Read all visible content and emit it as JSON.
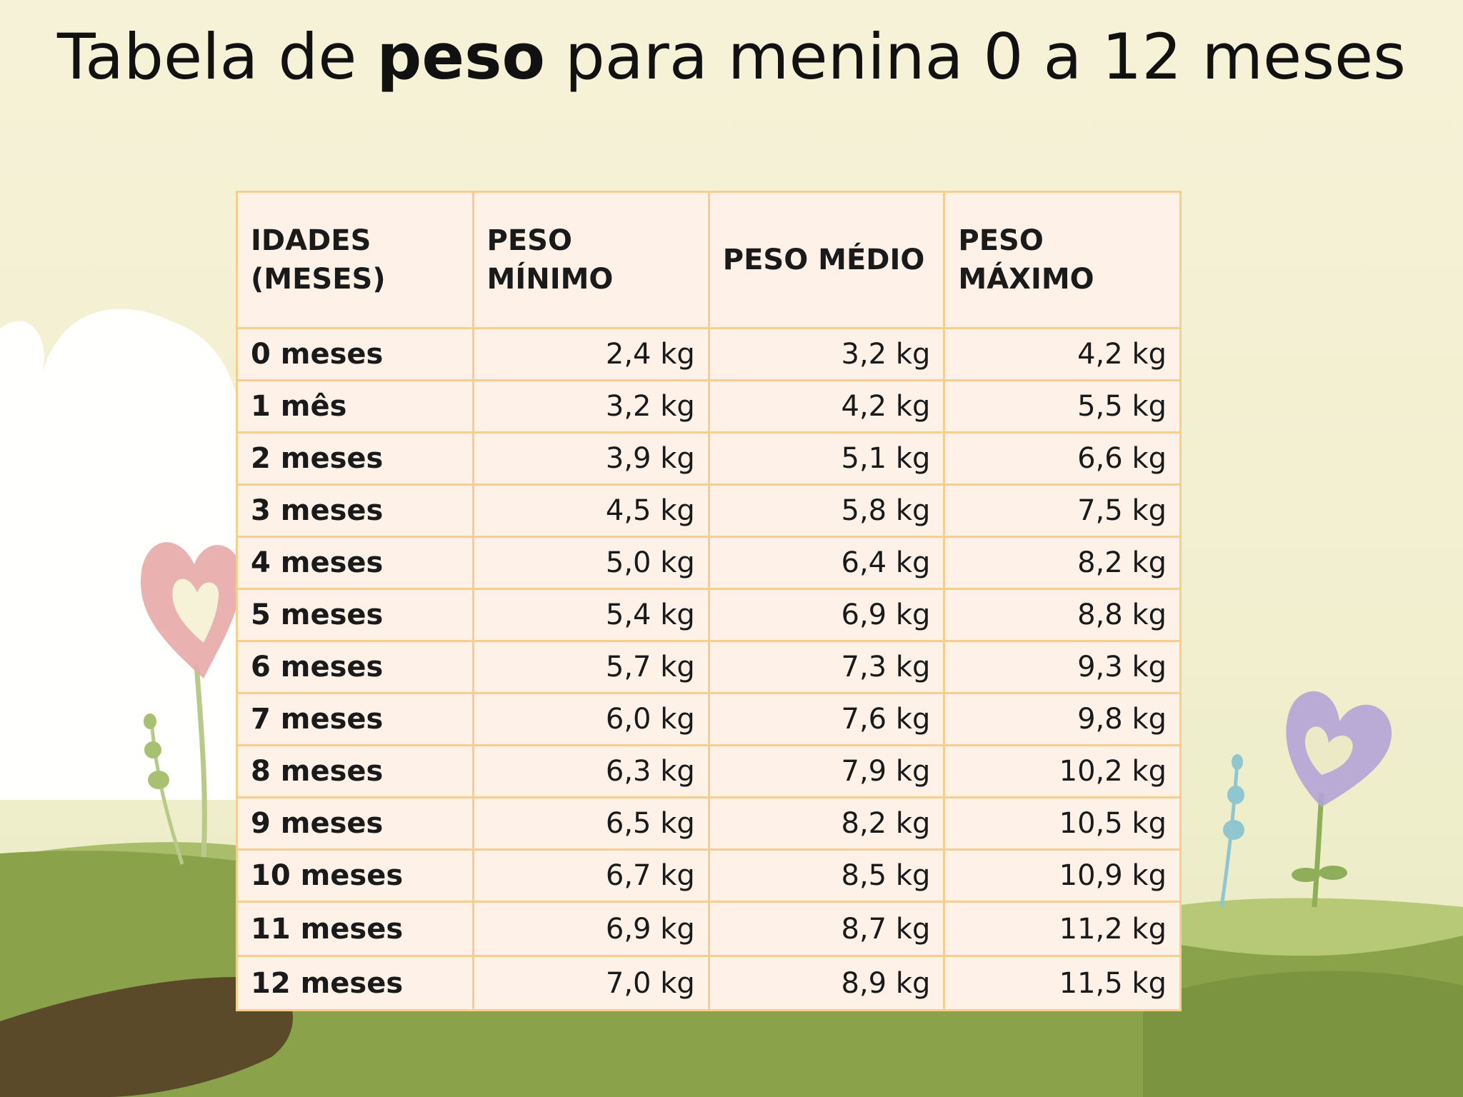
{
  "title": {
    "pre": "Tabela de ",
    "bold": "peso",
    "post": " para menina 0 a 12 meses"
  },
  "table": {
    "headers": [
      "IDADES (MESES)",
      "PESO MÍNIMO",
      "PESO MÉDIO",
      "PESO MÁXIMO"
    ],
    "rows": [
      {
        "age": "0 meses",
        "min": "2,4 kg",
        "avg": "3,2 kg",
        "max": "4,2 kg"
      },
      {
        "age": "1 mês",
        "min": "3,2 kg",
        "avg": "4,2 kg",
        "max": "5,5 kg"
      },
      {
        "age": "2 meses",
        "min": "3,9 kg",
        "avg": "5,1 kg",
        "max": "6,6 kg"
      },
      {
        "age": "3 meses",
        "min": "4,5 kg",
        "avg": "5,8 kg",
        "max": "7,5 kg"
      },
      {
        "age": "4 meses",
        "min": "5,0 kg",
        "avg": "6,4 kg",
        "max": "8,2 kg"
      },
      {
        "age": "5 meses",
        "min": "5,4 kg",
        "avg": "6,9 kg",
        "max": "8,8 kg"
      },
      {
        "age": "6 meses",
        "min": "5,7 kg",
        "avg": "7,3 kg",
        "max": "9,3 kg"
      },
      {
        "age": "7 meses",
        "min": "6,0 kg",
        "avg": "7,6 kg",
        "max": "9,8 kg"
      },
      {
        "age": "8 meses",
        "min": "6,3 kg",
        "avg": "7,9 kg",
        "max": "10,2 kg"
      },
      {
        "age": "9 meses",
        "min": "6,5 kg",
        "avg": "8,2 kg",
        "max": "10,5 kg"
      },
      {
        "age": "10 meses",
        "min": "6,7 kg",
        "avg": "8,5 kg",
        "max": "10,9 kg"
      },
      {
        "age": "11 meses",
        "min": "6,9 kg",
        "avg": "8,7 kg",
        "max": "11,2 kg"
      },
      {
        "age": "12 meses",
        "min": "7,0 kg",
        "avg": "8,9 kg",
        "max": "11,5 kg"
      }
    ]
  },
  "colors": {
    "table_border": "#f6cf8f",
    "table_fill": "#fdf1e8",
    "background": "#f6f2d8",
    "hills": "#8aa24a",
    "pink_heart": "#e8a9a8",
    "purple_heart": "#b3a3d6"
  }
}
